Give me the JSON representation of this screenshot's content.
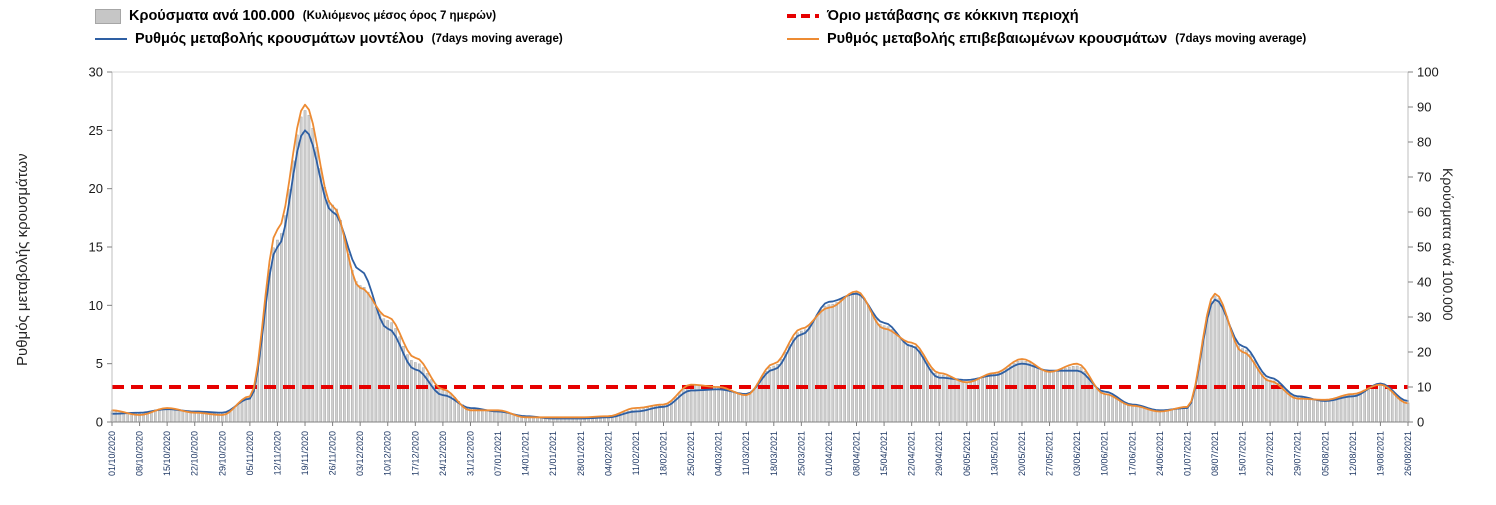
{
  "legend": {
    "items": [
      {
        "id": "cases-per-100k",
        "swatch": "bar",
        "color": "#c6c6c6",
        "label": "Κρούσματα ανά 100.000",
        "small": "(Κυλιόμενος μέσος όρος 7 ημερών)"
      },
      {
        "id": "red-zone-threshold",
        "swatch": "dash",
        "color": "#e60000",
        "label": "Όριο μετάβασης σε κόκκινη περιοχή",
        "small": ""
      },
      {
        "id": "model-rate",
        "swatch": "line",
        "color": "#2e5fa3",
        "label": "Ρυθμός μεταβολής κρουσμάτων μοντέλου",
        "small": "(7days moving average)"
      },
      {
        "id": "confirmed-rate",
        "swatch": "line",
        "color": "#ed8b33",
        "label": "Ρυθμός μεταβολής επιβεβαιωμένων κρουσμάτων",
        "small": "(7days moving average)"
      }
    ]
  },
  "chart_data": {
    "type": "bar",
    "combo": true,
    "grid": false,
    "legend_position": "top",
    "x": [
      "01/10/2020",
      "08/10/2020",
      "15/10/2020",
      "22/10/2020",
      "29/10/2020",
      "05/11/2020",
      "12/11/2020",
      "19/11/2020",
      "26/11/2020",
      "03/12/2020",
      "10/12/2020",
      "17/12/2020",
      "24/12/2020",
      "31/12/2020",
      "07/01/2021",
      "14/01/2021",
      "21/01/2021",
      "28/01/2021",
      "04/02/2021",
      "11/02/2021",
      "18/02/2021",
      "25/02/2021",
      "04/03/2021",
      "11/03/2021",
      "18/03/2021",
      "25/03/2021",
      "01/04/2021",
      "08/04/2021",
      "15/04/2021",
      "22/04/2021",
      "29/04/2021",
      "06/05/2021",
      "13/05/2021",
      "20/05/2021",
      "27/05/2021",
      "03/06/2021",
      "10/06/2021",
      "17/06/2021",
      "24/06/2021",
      "01/07/2021",
      "08/07/2021",
      "15/07/2021",
      "22/07/2021",
      "29/07/2021",
      "05/08/2021",
      "12/08/2021",
      "19/08/2021",
      "26/08/2021"
    ],
    "series": [
      {
        "name": "Κρούσματα ανά 100.000 (Κυλιόμενος μέσος όρος 7 ημερών)",
        "kind": "bar",
        "axis": "right",
        "color": "#cfcfcf",
        "edge_color": "#9b9b9b",
        "values": [
          3,
          2.5,
          4,
          3,
          2.5,
          7,
          52,
          89,
          62,
          39,
          29,
          17,
          9,
          4,
          3,
          1.5,
          1.2,
          1.2,
          1.5,
          3.5,
          5,
          10.5,
          10,
          8,
          16,
          26,
          33.5,
          37,
          27.5,
          22,
          13.5,
          11.5,
          14,
          17.5,
          14.5,
          16,
          8,
          5,
          3,
          4,
          36,
          21,
          12,
          7,
          6,
          8,
          11,
          5.5
        ]
      },
      {
        "name": "Ρυθμός μεταβολής κρουσμάτων μοντέλου (7days moving average)",
        "kind": "line",
        "axis": "left",
        "color": "#2e5fa3",
        "values": [
          0.7,
          0.8,
          1.1,
          0.9,
          0.8,
          2.0,
          15.0,
          25.0,
          18.0,
          13.0,
          8.0,
          4.5,
          2.3,
          1.2,
          0.9,
          0.5,
          0.3,
          0.3,
          0.4,
          0.9,
          1.3,
          2.7,
          2.8,
          2.4,
          4.5,
          7.5,
          10.3,
          11.0,
          8.5,
          6.5,
          3.8,
          3.6,
          4.0,
          5.0,
          4.4,
          4.4,
          2.6,
          1.5,
          1.0,
          1.2,
          10.5,
          6.5,
          3.8,
          2.2,
          1.8,
          2.2,
          3.3,
          1.8
        ]
      },
      {
        "name": "Ρυθμός μεταβολής επιβεβαιωμένων κρουσμάτων (7days moving average)",
        "kind": "line",
        "axis": "left",
        "color": "#ed8b33",
        "values": [
          1.0,
          0.6,
          1.2,
          0.8,
          0.6,
          2.2,
          16.5,
          27.2,
          18.5,
          11.5,
          9.0,
          5.5,
          2.8,
          1.0,
          1.0,
          0.4,
          0.4,
          0.4,
          0.5,
          1.2,
          1.5,
          3.2,
          3.0,
          2.3,
          5.0,
          8.0,
          9.8,
          11.2,
          8.0,
          6.8,
          4.2,
          3.4,
          4.2,
          5.4,
          4.3,
          5.0,
          2.4,
          1.4,
          0.9,
          1.3,
          11.0,
          6.0,
          3.5,
          2.0,
          1.9,
          2.4,
          3.2,
          1.6
        ]
      },
      {
        "name": "Όριο μετάβασης σε κόκκινη περιοχή",
        "kind": "threshold",
        "axis": "left",
        "color": "#e60000",
        "value": 3
      }
    ],
    "left_axis": {
      "title": "Ρυθμός μεταβολής κρουσμάτων",
      "min": 0,
      "max": 30,
      "ticks": [
        0,
        5,
        10,
        15,
        20,
        25,
        30
      ]
    },
    "right_axis": {
      "title": "Κρούσματα ανά 100.000",
      "min": 0,
      "max": 100,
      "ticks": [
        0,
        10,
        20,
        30,
        40,
        50,
        60,
        70,
        80,
        90,
        100
      ]
    }
  }
}
